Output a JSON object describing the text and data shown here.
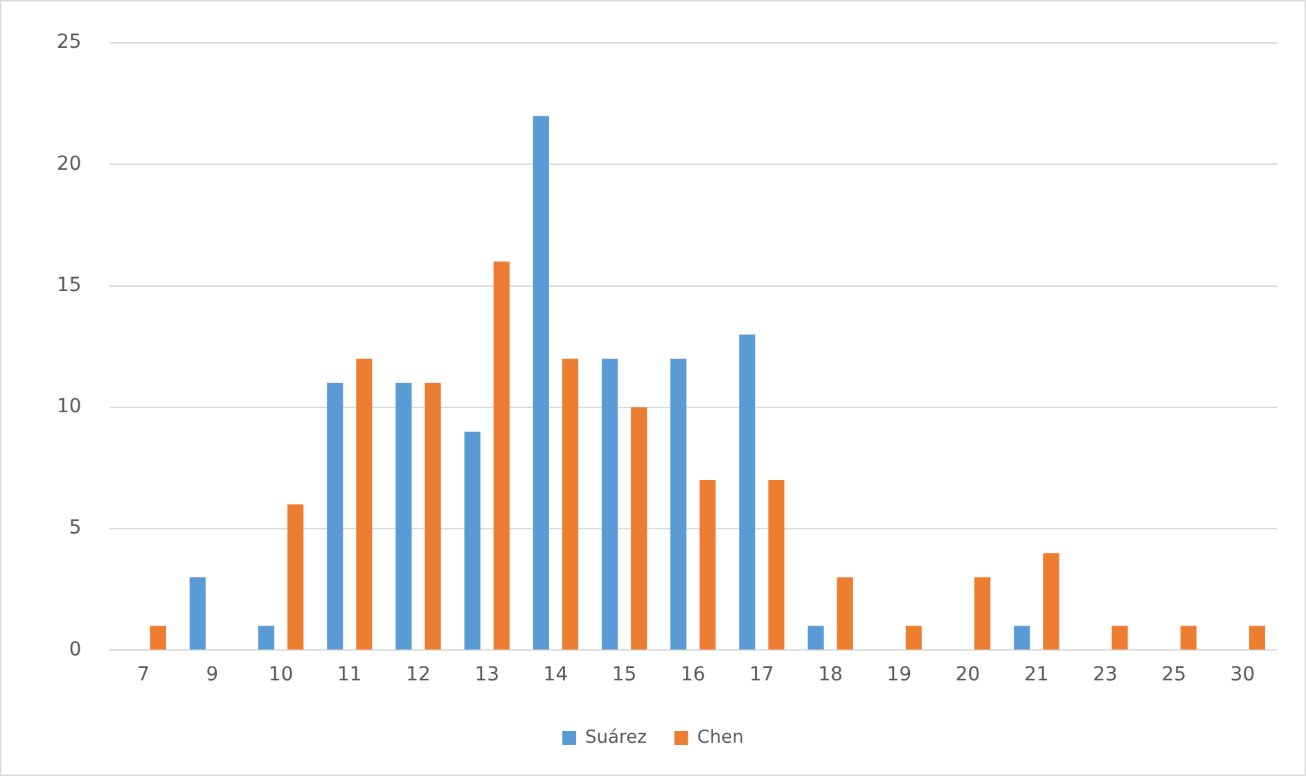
{
  "chart_data": {
    "type": "bar",
    "categories": [
      "7",
      "9",
      "10",
      "11",
      "12",
      "13",
      "14",
      "15",
      "16",
      "17",
      "18",
      "19",
      "20",
      "21",
      "23",
      "25",
      "30"
    ],
    "series": [
      {
        "name": "Suárez",
        "color": "#5b9bd5",
        "values": [
          0,
          3,
          1,
          11,
          11,
          9,
          22,
          12,
          12,
          13,
          1,
          0,
          0,
          1,
          0,
          0,
          0
        ]
      },
      {
        "name": "Chen",
        "color": "#ed7d31",
        "values": [
          1,
          0,
          6,
          12,
          11,
          16,
          12,
          10,
          7,
          7,
          3,
          1,
          3,
          4,
          1,
          1,
          1
        ]
      }
    ],
    "ylim": [
      0,
      25
    ],
    "yticks": [
      0,
      5,
      10,
      15,
      20,
      25
    ],
    "grid": "y",
    "legend": "bottom"
  }
}
